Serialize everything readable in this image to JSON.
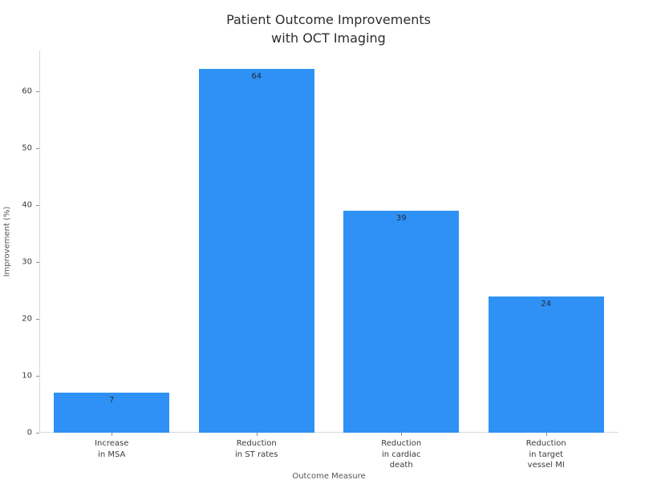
{
  "chart_data": {
    "type": "bar",
    "title": "Patient Outcome Improvements\nwith OCT Imaging",
    "xlabel": "Outcome Measure",
    "ylabel": "Improvement (%)",
    "categories": [
      "Increase\nin MSA",
      "Reduction\nin ST rates",
      "Reduction\nin cardiac\ndeath",
      "Reduction\nin target\nvessel MI"
    ],
    "values": [
      7,
      64,
      39,
      24
    ],
    "bar_labels": [
      "7",
      "64",
      "39",
      "24"
    ],
    "yticks": [
      0,
      10,
      20,
      30,
      40,
      50,
      60
    ],
    "ylim": [
      0,
      67.2
    ],
    "grid": false,
    "legend": "none",
    "bar_color": "#2f91f5",
    "colors": {
      "background": "#ffffff",
      "title": "#2d2d2d",
      "axis_title": "#555555",
      "tick_label": "#3b3b3b",
      "spine": "#d9d9d9",
      "tick_mark": "#8a8a8a",
      "value_label": "#1f2a38"
    }
  }
}
